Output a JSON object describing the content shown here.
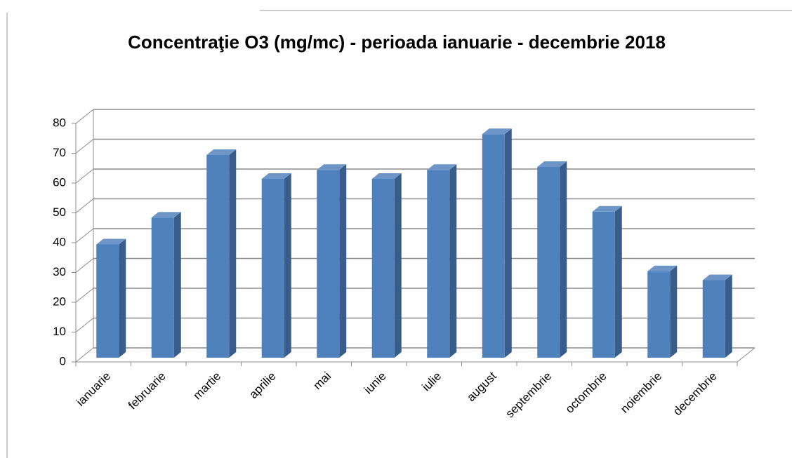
{
  "chart_data": {
    "type": "bar3d",
    "title": "Concentraţie O3 (mg/mc) - perioada ianuarie - decembrie 2018",
    "categories": [
      "ianuarie",
      "februarie",
      "martie",
      "aprilie",
      "mai",
      "iunie",
      "iulie",
      "august",
      "septembrie",
      "octombrie",
      "noiembrie",
      "decembrie"
    ],
    "values": [
      38,
      47,
      68,
      60,
      63,
      60,
      63,
      75,
      64,
      49,
      29,
      26
    ],
    "color": "#4f81bd",
    "ylim": [
      0,
      80
    ],
    "yticks": [
      0,
      10,
      20,
      30,
      40,
      50,
      60,
      70,
      80
    ],
    "grid": true
  }
}
